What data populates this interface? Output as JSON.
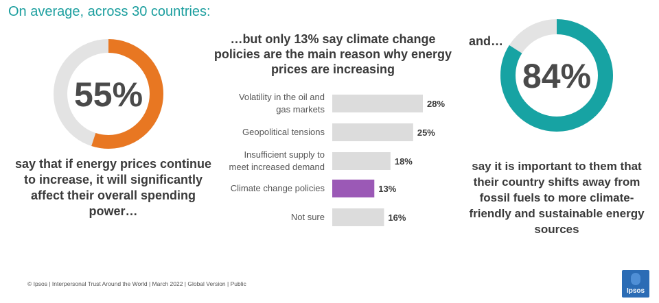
{
  "header": {
    "title": "On average, across 30 countries:"
  },
  "left_donut": {
    "value": 55,
    "label": "55%",
    "caption": "say that if energy prices continue to increase, it will significantly affect their overall spending power…",
    "color": "#e87722",
    "track_color": "#e3e3e3"
  },
  "middle": {
    "title": "…but only 13% say climate change policies are the main reason why energy prices are increasing"
  },
  "right": {
    "lead": "and…",
    "value": 84,
    "label": "84%",
    "caption": "say it is important to them that their country shifts away from fossil fuels to more climate-friendly and sustainable energy sources",
    "color": "#17a3a3",
    "track_color": "#e3e3e3"
  },
  "chart_data": {
    "type": "bar",
    "orientation": "horizontal",
    "categories": [
      "Volatility in the oil and gas markets",
      "Geopolitical tensions",
      "Insufficient supply to meet increased demand",
      "Climate change policies",
      "Not sure"
    ],
    "category_lines": [
      [
        "Volatility in the oil and",
        "gas markets"
      ],
      [
        "Geopolitical tensions"
      ],
      [
        "Insufficient supply to",
        "meet increased demand"
      ],
      [
        "Climate change policies"
      ],
      [
        "Not sure"
      ]
    ],
    "values": [
      28,
      25,
      18,
      13,
      16
    ],
    "value_labels": [
      "28%",
      "25%",
      "18%",
      "13%",
      "16%"
    ],
    "colors": [
      "#dcdcdc",
      "#dcdcdc",
      "#dcdcdc",
      "#9b59b6",
      "#dcdcdc"
    ],
    "xlim": [
      0,
      28
    ],
    "grid": false
  },
  "footer": {
    "text": "© Ipsos | Interpersonal Trust Around the World | March 2022 | Global Version | Public"
  },
  "logo": {
    "text": "Ipsos",
    "color": "#2b6cb5"
  }
}
